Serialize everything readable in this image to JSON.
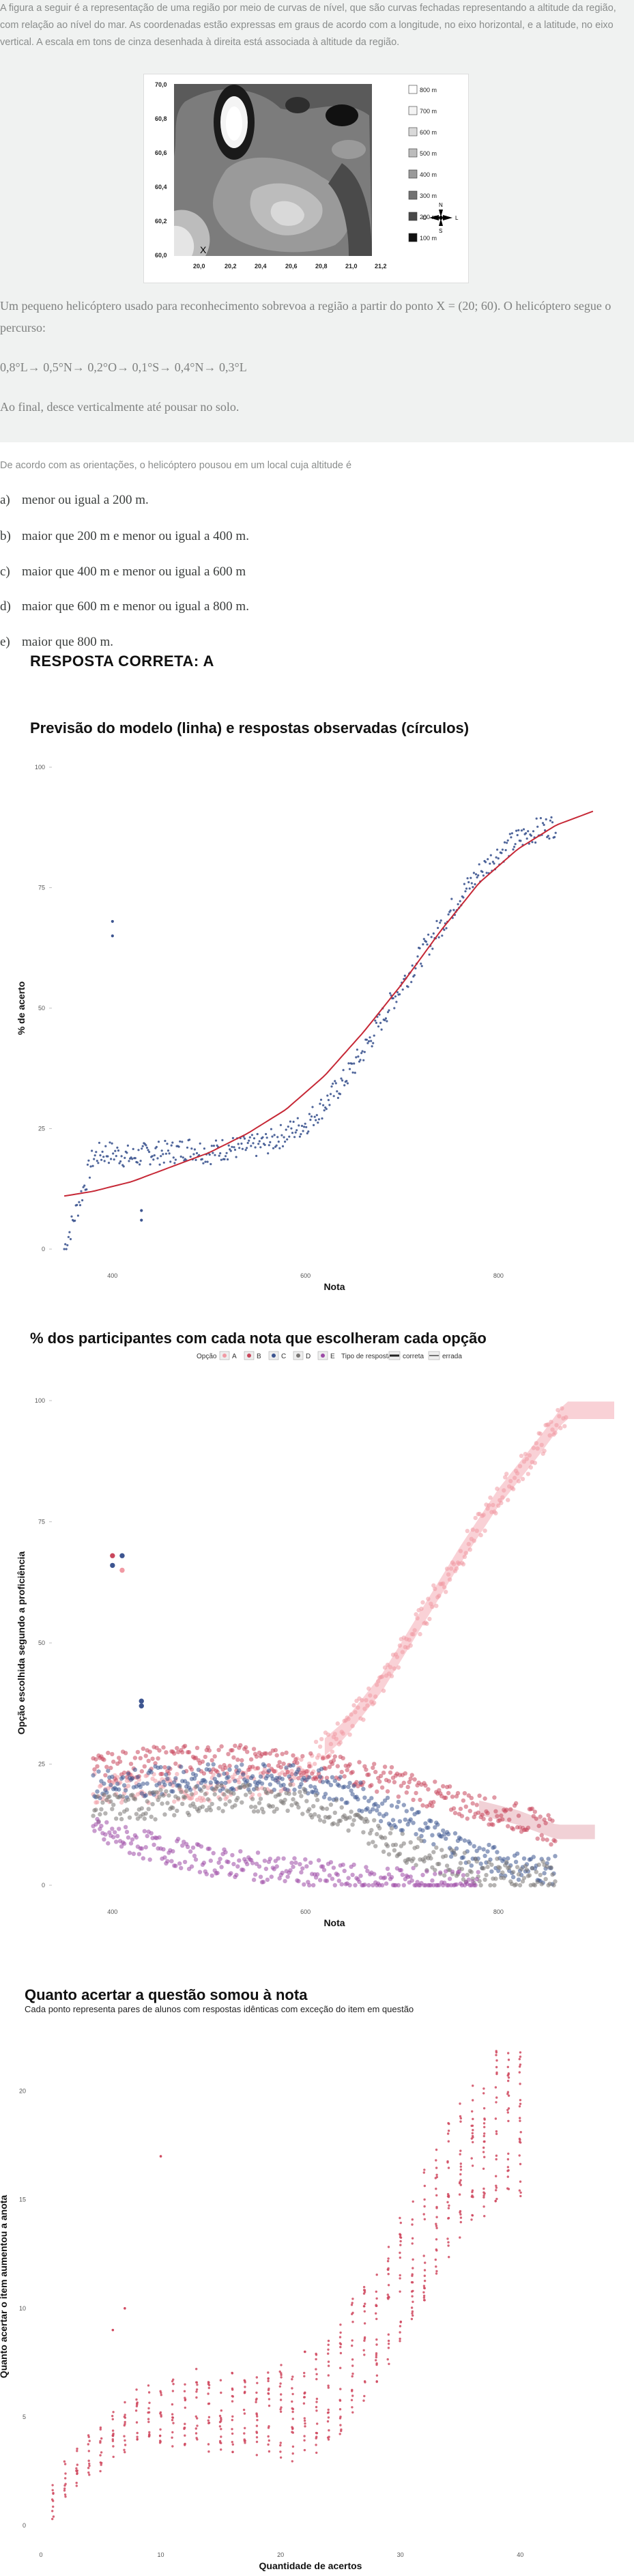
{
  "question": {
    "intro": "A figura a seguir é a representação de uma região por meio de curvas de nível, que são curvas fechadas representando a altitude da região, com relação ao nível do mar. As coordenadas estão expressas em graus de acordo com a longitude, no eixo horizontal, e a latitude, no eixo vertical. A escala em tons de cinza desenhada à direita está associada à altitude da região.",
    "figure": {
      "y_ticks": [
        "70,0",
        "60,8",
        "60,6",
        "60,4",
        "60,2",
        "60,0"
      ],
      "x_ticks": [
        "20,0",
        "20,2",
        "20,4",
        "20,6",
        "20,8",
        "21,0",
        "21,2"
      ],
      "scale": [
        {
          "label": "800 m",
          "shade": "#ffffff"
        },
        {
          "label": "700 m",
          "shade": "#f4f4f4"
        },
        {
          "label": "600 m",
          "shade": "#d9d9d9"
        },
        {
          "label": "500 m",
          "shade": "#bcbcbc"
        },
        {
          "label": "400 m",
          "shade": "#9a9a9a"
        },
        {
          "label": "300 m",
          "shade": "#727272"
        },
        {
          "label": "200 m",
          "shade": "#4a4a4a"
        },
        {
          "label": "100 m",
          "shade": "#111111"
        }
      ],
      "compass": {
        "n": "N",
        "s": "S",
        "e": "L",
        "o": "O"
      },
      "point_label": "X"
    },
    "body": "Um pequeno helicóptero usado para reconhecimento sobrevoa a região a partir do ponto X = (20; 60). O helicóptero segue o percurso:",
    "route": "0,8°L→ 0,5°N→ 0,2°O→ 0,1°S→ 0,4°N→ 0,3°L",
    "descent": "Ao final, desce verticalmente até pousar no solo.",
    "stem": "De acordo com as orientações, o helicóptero pousou em um local cuja altitude é",
    "options": [
      {
        "letter": "a)",
        "text": "menor ou igual a 200 m."
      },
      {
        "letter": "b)",
        "text": "maior que 200 m e menor ou igual a 400 m."
      },
      {
        "letter": "c)",
        "text": "maior que 400 m e menor ou igual a 600 m"
      },
      {
        "letter": "d)",
        "text": "maior que 600 m e menor ou igual a 800 m."
      },
      {
        "letter": "e)",
        "text": "maior que 800 m."
      }
    ]
  },
  "answer": "RESPOSTA CORRETA: A",
  "chart_data": [
    {
      "type": "scatter",
      "title": "Previsão do modelo (linha) e respostas observadas (círculos)",
      "xlabel": "Nota",
      "ylabel": "% de acerto",
      "x_ticks": [
        "400",
        "600",
        "800"
      ],
      "y_ticks": [
        0,
        25,
        50,
        75,
        100
      ],
      "ylim": [
        0,
        100
      ],
      "series": [
        {
          "color": "#3d5590",
          "points": [
            [
              350,
              0
            ],
            [
              380,
              19
            ],
            [
              390,
              20
            ],
            [
              400,
              20
            ],
            [
              420,
              19
            ],
            [
              440,
              20
            ],
            [
              460,
              20
            ],
            [
              480,
              21
            ],
            [
              500,
              20
            ],
            [
              520,
              21
            ],
            [
              540,
              21
            ],
            [
              560,
              22
            ],
            [
              580,
              24
            ],
            [
              600,
              26
            ],
            [
              620,
              30
            ],
            [
              640,
              35
            ],
            [
              660,
              41
            ],
            [
              680,
              48
            ],
            [
              700,
              55
            ],
            [
              720,
              61
            ],
            [
              740,
              67
            ],
            [
              760,
              73
            ],
            [
              780,
              78
            ],
            [
              800,
              82
            ],
            [
              820,
              85
            ],
            [
              840,
              87
            ],
            [
              860,
              88
            ]
          ]
        },
        {
          "color": "#c62836",
          "points": [
            [
              350,
              11
            ],
            [
              380,
              12
            ],
            [
              420,
              14
            ],
            [
              460,
              17
            ],
            [
              500,
              20
            ],
            [
              540,
              24
            ],
            [
              580,
              29
            ],
            [
              620,
              36
            ],
            [
              660,
              45
            ],
            [
              700,
              55
            ],
            [
              740,
              66
            ],
            [
              780,
              76
            ],
            [
              820,
              83
            ],
            [
              860,
              88
            ],
            [
              900,
              91
            ]
          ]
        }
      ],
      "outliers": [
        [
          400,
          68
        ],
        [
          400,
          65
        ],
        [
          430,
          8
        ],
        [
          430,
          6
        ]
      ],
      "grid": false
    },
    {
      "type": "scatter",
      "title": "% dos participantes com cada nota que escolheram cada opção",
      "xlabel": "Nota",
      "ylabel": "Opção escolhida segundo a proficiência",
      "legend": {
        "option_title": "Opção",
        "options": [
          {
            "label": "A",
            "color": "#f19aa4"
          },
          {
            "label": "B",
            "color": "#c9475c"
          },
          {
            "label": "C",
            "color": "#3d5590"
          },
          {
            "label": "D",
            "color": "#7a7775"
          },
          {
            "label": "E",
            "color": "#9c4aa6"
          }
        ],
        "type_title": "Tipo de resposta",
        "types": [
          {
            "label": "correta"
          },
          {
            "label": "errada"
          }
        ]
      },
      "x_ticks": [
        "400",
        "600",
        "800"
      ],
      "y_ticks": [
        0,
        25,
        50,
        75,
        100
      ],
      "ylim": [
        0,
        100
      ],
      "series": [
        {
          "name": "A",
          "color": "#f19aa4",
          "points": [
            [
              380,
              20
            ],
            [
              420,
              20
            ],
            [
              460,
              20
            ],
            [
              500,
              20
            ],
            [
              540,
              21
            ],
            [
              580,
              22
            ],
            [
              600,
              25
            ],
            [
              640,
              32
            ],
            [
              680,
              42
            ],
            [
              720,
              55
            ],
            [
              760,
              68
            ],
            [
              800,
              80
            ],
            [
              840,
              90
            ],
            [
              870,
              98
            ]
          ]
        },
        {
          "name": "B",
          "color": "#c9475c",
          "points": [
            [
              380,
              24
            ],
            [
              420,
              25
            ],
            [
              460,
              26
            ],
            [
              500,
              26
            ],
            [
              540,
              26
            ],
            [
              580,
              25
            ],
            [
              620,
              24
            ],
            [
              660,
              23
            ],
            [
              700,
              21
            ],
            [
              740,
              18
            ],
            [
              780,
              16
            ],
            [
              820,
              14
            ],
            [
              860,
              11
            ]
          ]
        },
        {
          "name": "C",
          "color": "#3d5590",
          "points": [
            [
              380,
              21
            ],
            [
              420,
              21
            ],
            [
              460,
              22
            ],
            [
              500,
              22
            ],
            [
              540,
              22
            ],
            [
              580,
              22
            ],
            [
              620,
              21
            ],
            [
              660,
              18
            ],
            [
              700,
              14
            ],
            [
              740,
              10
            ],
            [
              780,
              6
            ],
            [
              820,
              4
            ],
            [
              860,
              3
            ]
          ]
        },
        {
          "name": "D",
          "color": "#7a7775",
          "points": [
            [
              380,
              16
            ],
            [
              420,
              16
            ],
            [
              460,
              17
            ],
            [
              500,
              18
            ],
            [
              540,
              18
            ],
            [
              580,
              18
            ],
            [
              620,
              16
            ],
            [
              660,
              12
            ],
            [
              700,
              8
            ],
            [
              740,
              5
            ],
            [
              780,
              3
            ],
            [
              820,
              2
            ],
            [
              860,
              2
            ]
          ]
        },
        {
          "name": "E",
          "color": "#9c4aa6",
          "points": [
            [
              380,
              11
            ],
            [
              420,
              9
            ],
            [
              460,
              7
            ],
            [
              500,
              5
            ],
            [
              540,
              4
            ],
            [
              580,
              3
            ],
            [
              620,
              2
            ],
            [
              660,
              1
            ],
            [
              700,
              1
            ],
            [
              740,
              0
            ],
            [
              780,
              0
            ]
          ]
        }
      ],
      "outliers": [
        [
          400,
          68
        ],
        [
          400,
          66
        ],
        [
          410,
          65
        ],
        [
          410,
          68
        ],
        [
          430,
          38
        ],
        [
          430,
          37
        ]
      ],
      "grid": false
    },
    {
      "type": "scatter",
      "title": "Quanto acertar a questão somou à nota",
      "subtitle": "Cada ponto representa pares de alunos com respostas idênticas com exceção do item em questão",
      "xlabel": "Quantidade de acertos",
      "ylabel": "Quanto acertar o item aumentou a anota",
      "x_ticks": [
        "0",
        "10",
        "20",
        "30",
        "40"
      ],
      "y_ticks": [
        "0",
        "5",
        "10",
        "15",
        "20"
      ],
      "xlim": [
        0,
        45
      ],
      "ylim": [
        0,
        22
      ],
      "series": [
        {
          "color": "#d04a60",
          "points": [
            [
              1,
              1
            ],
            [
              2,
              2
            ],
            [
              3,
              2.5
            ],
            [
              4,
              3
            ],
            [
              5,
              3.5
            ],
            [
              6,
              4
            ],
            [
              7,
              4.5
            ],
            [
              8,
              5
            ],
            [
              9,
              5
            ],
            [
              10,
              5
            ],
            [
              11,
              5
            ],
            [
              12,
              5
            ],
            [
              13,
              5.5
            ],
            [
              14,
              5
            ],
            [
              15,
              5
            ],
            [
              16,
              5
            ],
            [
              17,
              5
            ],
            [
              18,
              5
            ],
            [
              19,
              5
            ],
            [
              20,
              5
            ],
            [
              21,
              5
            ],
            [
              22,
              5.5
            ],
            [
              23,
              5.5
            ],
            [
              24,
              6
            ],
            [
              25,
              6.5
            ],
            [
              26,
              7.5
            ],
            [
              27,
              8
            ],
            [
              28,
              9
            ],
            [
              29,
              10
            ],
            [
              30,
              11
            ],
            [
              31,
              12
            ],
            [
              32,
              13
            ],
            [
              33,
              14
            ],
            [
              34,
              15
            ],
            [
              35,
              16
            ],
            [
              36,
              17
            ],
            [
              37,
              17
            ],
            [
              38,
              18
            ],
            [
              39,
              18
            ],
            [
              40,
              18
            ]
          ]
        }
      ],
      "outliers": [
        [
          6,
          9
        ],
        [
          7,
          10
        ],
        [
          10,
          17
        ]
      ],
      "grid": false
    }
  ]
}
